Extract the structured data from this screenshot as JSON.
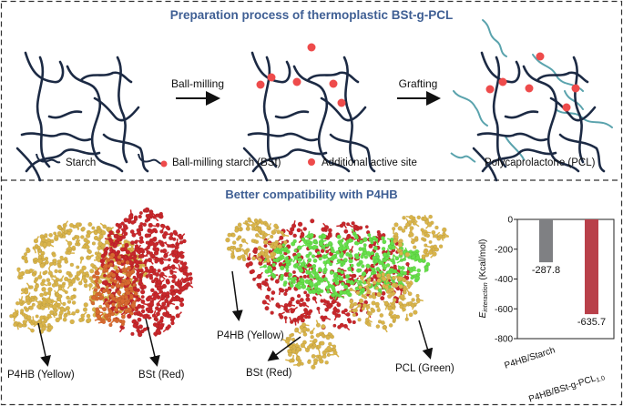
{
  "section1": {
    "title": "Preparation process of thermoplastic BSt-g-PCL",
    "step1_label": "Ball-milling",
    "step2_label": "Grafting",
    "legend": {
      "starch": "Starch",
      "bst": "Ball-milling starch (BSt)",
      "active_site": "Additional active site",
      "pcl": "Polycaprolactone (PCL)"
    }
  },
  "section2": {
    "title": "Better compatibility with P4HB",
    "model1_labels": {
      "p4hb": "P4HB (Yellow)",
      "bst": "BSt (Red)"
    },
    "model2_labels": {
      "p4hb": "P4HB (Yellow)",
      "bst": "BSt (Red)",
      "pcl": "PCL (Green)"
    }
  },
  "colors": {
    "title": "#3f5f94",
    "chain": "#1c2a44",
    "active_site": "#ee4b4b",
    "pcl": "#5aa3ad",
    "p4hb": "#d9b44a",
    "bst": "#c8272b",
    "pcl_model": "#66e04a",
    "bar_starch": "#7f8083",
    "bar_bst": "#b9404a"
  },
  "chart_data": {
    "type": "bar",
    "categories": [
      "P4HB/Starch",
      "P4HB/BSt-g-PCL"
    ],
    "category_subscript": [
      "",
      "1.0"
    ],
    "values": [
      -287.8,
      -635.7
    ],
    "data_labels": [
      "-287.8",
      "-635.7"
    ],
    "ylabel_main": "E",
    "ylabel_sub": "interaction",
    "ylabel_unit": " (Kcal/mol)",
    "ylim": [
      -800,
      0
    ],
    "yticks": [
      "0",
      "-200",
      "-400",
      "-600",
      "-800"
    ],
    "grid": false
  }
}
